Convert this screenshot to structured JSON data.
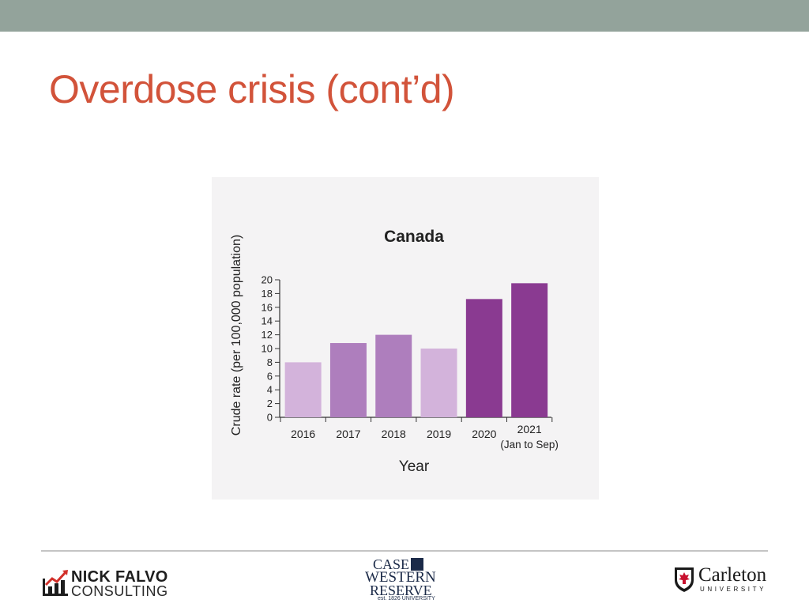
{
  "slide": {
    "title": "Overdose crisis (cont’d)"
  },
  "colors": {
    "top_band": "#93a39b",
    "title": "#d2533a",
    "bars": [
      "#d3b3db",
      "#ae7ebd",
      "#ae7ebd",
      "#d3b3db",
      "#8a3a91",
      "#8a3a91"
    ]
  },
  "chart_data": {
    "type": "bar",
    "title": "Canada",
    "xlabel": "Year",
    "ylabel": "Crude rate (per 100,000 population)",
    "categories": [
      "2016",
      "2017",
      "2018",
      "2019",
      "2020",
      "2021"
    ],
    "category_notes": [
      "",
      "",
      "",
      "",
      "",
      "(Jan to Sep)"
    ],
    "values": [
      8.0,
      10.8,
      12.0,
      10.0,
      17.2,
      19.5
    ],
    "ylim": [
      0,
      20
    ],
    "yticks": [
      0,
      2,
      4,
      6,
      8,
      10,
      12,
      14,
      16,
      18,
      20
    ],
    "grid": false,
    "legend": "none"
  },
  "footer": {
    "logos": {
      "falvo": {
        "line1": "NICK FALVO",
        "line2": "CONSULTING",
        "icon": "bar-chart-arrow-icon"
      },
      "cwru": {
        "line1": "CASE",
        "line2": "WESTERN",
        "line3": "RESERVE",
        "line4": "est. 1826 UNIVERSITY",
        "icon": "cwru-emblem-icon"
      },
      "carleton": {
        "line1": "Carleton",
        "line2": "UNIVERSITY",
        "icon": "maple-leaf-shield-icon"
      }
    }
  }
}
